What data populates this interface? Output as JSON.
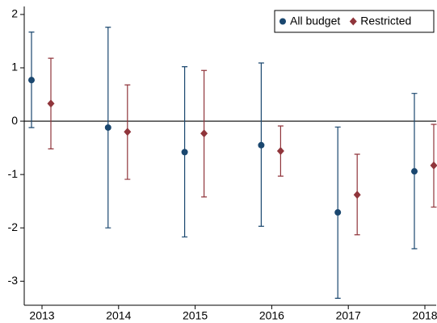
{
  "chart_data": {
    "type": "errorbar",
    "categories": [
      "2013",
      "2014",
      "2015",
      "2016",
      "2017",
      "2018"
    ],
    "series": [
      {
        "name": "All budget",
        "color": "#1a476f",
        "marker": "circle",
        "values": [
          0.77,
          -0.12,
          -0.58,
          -0.45,
          -1.71,
          -0.94
        ],
        "lower": [
          -0.12,
          -2.0,
          -2.17,
          -1.97,
          -3.32,
          -2.39
        ],
        "upper": [
          1.67,
          1.76,
          1.02,
          1.09,
          -0.11,
          0.52
        ]
      },
      {
        "name": "Restricted",
        "color": "#90353b",
        "marker": "diamond",
        "values": [
          0.33,
          -0.2,
          -0.23,
          -0.56,
          -1.38,
          -0.83
        ],
        "lower": [
          -0.52,
          -1.09,
          -1.42,
          -1.03,
          -2.13,
          -1.61
        ],
        "upper": [
          1.18,
          0.68,
          0.95,
          -0.09,
          -0.62,
          -0.06
        ]
      }
    ],
    "ylim": [
      -3.45,
      2.15
    ],
    "yticks": [
      2,
      1,
      0,
      -1,
      -2,
      -3
    ],
    "hline": 0,
    "grid": false,
    "legend": "top-right"
  }
}
